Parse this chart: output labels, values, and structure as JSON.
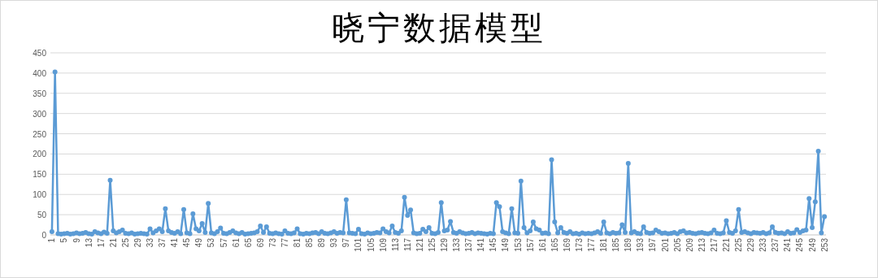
{
  "chart_data": {
    "type": "line",
    "title": "晓宁数据模型",
    "categories": [
      "1",
      null,
      null,
      null,
      "5",
      null,
      null,
      null,
      "9",
      null,
      null,
      null,
      "13",
      null,
      null,
      null,
      "17",
      null,
      null,
      null,
      "21",
      null,
      null,
      null,
      "25",
      null,
      null,
      null,
      "29",
      null,
      null,
      null,
      "33",
      null,
      null,
      null,
      "37",
      null,
      null,
      null,
      "41",
      null,
      null,
      null,
      "45",
      null,
      null,
      null,
      "49",
      null,
      null,
      null,
      "53",
      null,
      null,
      null,
      "57",
      null,
      null,
      null,
      "61",
      null,
      null,
      null,
      "65",
      null,
      null,
      null,
      "69",
      null,
      null,
      null,
      "73",
      null,
      null,
      null,
      "77",
      null,
      null,
      null,
      "81",
      null,
      null,
      null,
      "85",
      null,
      null,
      null,
      "89",
      null,
      null,
      null,
      "93",
      null,
      null,
      null,
      "97",
      null,
      null,
      null,
      "101",
      null,
      null,
      null,
      "105",
      null,
      null,
      null,
      "109",
      null,
      null,
      null,
      "113",
      null,
      null,
      null,
      "117",
      null,
      null,
      null,
      "121",
      null,
      null,
      null,
      "125",
      null,
      null,
      null,
      "129",
      null,
      null,
      null,
      "133",
      null,
      null,
      null,
      "137",
      null,
      null,
      null,
      "141",
      null,
      null,
      null,
      "145",
      null,
      null,
      null,
      "149",
      null,
      null,
      null,
      "153",
      null,
      null,
      null,
      "157",
      null,
      null,
      null,
      "161",
      null,
      null,
      null,
      "165",
      null,
      null,
      null,
      "169",
      null,
      null,
      null,
      "173",
      null,
      null,
      null,
      "177",
      null,
      null,
      null,
      "181",
      null,
      null,
      null,
      "185",
      null,
      null,
      null,
      "189",
      null,
      null,
      null,
      "193",
      null,
      null,
      null,
      "197",
      null,
      null,
      null,
      "201",
      null,
      null,
      null,
      "205",
      null,
      null,
      null,
      "209",
      null,
      null,
      null,
      "213",
      null,
      null,
      null,
      "217",
      null,
      null,
      null,
      "221",
      null,
      null,
      null,
      "225",
      null,
      null,
      null,
      "229",
      null,
      null,
      null,
      "233",
      null,
      null,
      null,
      "237",
      null,
      null,
      null,
      "241",
      null,
      null,
      null,
      "245",
      null,
      null,
      null,
      "249",
      null,
      null,
      null,
      "253"
    ],
    "series": [
      {
        "color": "#5b9bd5",
        "values": [
          8,
          403,
          3,
          2,
          3,
          4,
          2,
          3,
          5,
          3,
          4,
          6,
          3,
          2,
          8,
          5,
          3,
          7,
          4,
          135,
          10,
          5,
          8,
          12,
          4,
          3,
          5,
          2,
          3,
          4,
          3,
          2,
          15,
          5,
          10,
          15,
          8,
          65,
          10,
          6,
          4,
          8,
          3,
          63,
          5,
          3,
          52,
          15,
          10,
          28,
          6,
          78,
          5,
          3,
          8,
          17,
          4,
          3,
          6,
          10,
          5,
          3,
          6,
          2,
          3,
          4,
          5,
          8,
          22,
          6,
          20,
          4,
          3,
          5,
          3,
          2,
          10,
          4,
          3,
          5,
          15,
          3,
          2,
          4,
          3,
          5,
          6,
          3,
          8,
          4,
          3,
          5,
          8,
          4,
          6,
          5,
          87,
          5,
          4,
          3,
          14,
          3,
          2,
          5,
          3,
          4,
          6,
          5,
          15,
          8,
          5,
          22,
          6,
          4,
          10,
          93,
          48,
          62,
          5,
          3,
          4,
          14,
          8,
          18,
          4,
          3,
          6,
          80,
          10,
          12,
          33,
          6,
          4,
          8,
          5,
          3,
          4,
          6,
          3,
          5,
          4,
          3,
          2,
          4,
          3,
          80,
          70,
          8,
          5,
          3,
          65,
          5,
          4,
          133,
          18,
          5,
          10,
          32,
          15,
          12,
          4,
          5,
          3,
          186,
          32,
          5,
          18,
          6,
          4,
          8,
          3,
          4,
          2,
          5,
          3,
          4,
          3,
          5,
          8,
          4,
          32,
          5,
          3,
          6,
          4,
          5,
          25,
          6,
          177,
          5,
          8,
          4,
          3,
          20,
          6,
          4,
          5,
          12,
          8,
          4,
          5,
          3,
          4,
          6,
          3,
          8,
          10,
          5,
          6,
          4,
          3,
          5,
          6,
          4,
          3,
          5,
          12,
          4,
          3,
          5,
          35,
          6,
          4,
          10,
          63,
          6,
          8,
          5,
          3,
          6,
          5,
          4,
          6,
          3,
          5,
          20,
          6,
          4,
          5,
          3,
          8,
          4,
          5,
          13,
          6,
          10,
          12,
          90,
          18,
          82,
          207,
          5,
          45
        ]
      }
    ],
    "ylim": [
      0,
      450
    ],
    "yticks": [
      0,
      50,
      100,
      150,
      200,
      250,
      300,
      350,
      400,
      450
    ],
    "grid": "y",
    "marker": "circle",
    "line_style": "solid"
  }
}
